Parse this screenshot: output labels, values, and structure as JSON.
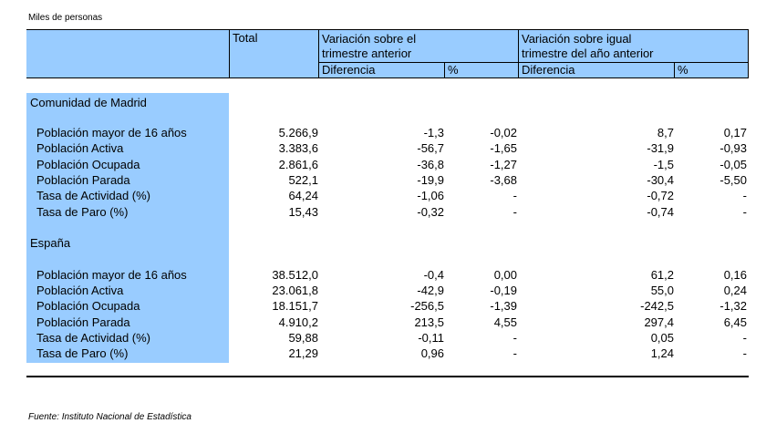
{
  "units_label": "Miles de personas",
  "header": {
    "total": "Total",
    "var_prev_quarter": [
      "Variación sobre el",
      "trimestre anterior"
    ],
    "var_same_quarter": [
      "Variación sobre igual",
      "trimestre del año anterior"
    ],
    "diferencia": "Diferencia",
    "percent": "%"
  },
  "sections": [
    {
      "title": "Comunidad de Madrid",
      "rows": [
        {
          "label": "Población mayor de 16 años",
          "total": "5.266,9",
          "dif1": "-1,3",
          "pct1": "-0,02",
          "dif2": "8,7",
          "pct2": "0,17"
        },
        {
          "label": "Población Activa",
          "total": "3.383,6",
          "dif1": "-56,7",
          "pct1": "-1,65",
          "dif2": "-31,9",
          "pct2": "-0,93"
        },
        {
          "label": "Población Ocupada",
          "total": "2.861,6",
          "dif1": "-36,8",
          "pct1": "-1,27",
          "dif2": "-1,5",
          "pct2": "-0,05"
        },
        {
          "label": "Población Parada",
          "total": "522,1",
          "dif1": "-19,9",
          "pct1": "-3,68",
          "dif2": "-30,4",
          "pct2": "-5,50"
        },
        {
          "label": "Tasa de Actividad (%)",
          "total": "64,24",
          "dif1": "-1,06",
          "pct1": "-",
          "dif2": "-0,72",
          "pct2": "-"
        },
        {
          "label": "Tasa de Paro (%)",
          "total": "15,43",
          "dif1": "-0,32",
          "pct1": "-",
          "dif2": "-0,74",
          "pct2": "-"
        }
      ]
    },
    {
      "title": "España",
      "rows": [
        {
          "label": "Población mayor de 16 años",
          "total": "38.512,0",
          "dif1": "-0,4",
          "pct1": "0,00",
          "dif2": "61,2",
          "pct2": "0,16"
        },
        {
          "label": "Población Activa",
          "total": "23.061,8",
          "dif1": "-42,9",
          "pct1": "-0,19",
          "dif2": "55,0",
          "pct2": "0,24"
        },
        {
          "label": "Población Ocupada",
          "total": "18.151,7",
          "dif1": "-256,5",
          "pct1": "-1,39",
          "dif2": "-242,5",
          "pct2": "-1,32"
        },
        {
          "label": "Población Parada",
          "total": "4.910,2",
          "dif1": "213,5",
          "pct1": "4,55",
          "dif2": "297,4",
          "pct2": "6,45"
        },
        {
          "label": "Tasa de Actividad (%)",
          "total": "59,88",
          "dif1": "-0,11",
          "pct1": "-",
          "dif2": "0,05",
          "pct2": "-"
        },
        {
          "label": "Tasa de Paro (%)",
          "total": "21,29",
          "dif1": "0,96",
          "pct1": "-",
          "dif2": "1,24",
          "pct2": "-"
        }
      ]
    }
  ],
  "footer": "Fuente: Instituto Nacional de Estadística",
  "colors": {
    "header_fill": "#99ccff"
  }
}
